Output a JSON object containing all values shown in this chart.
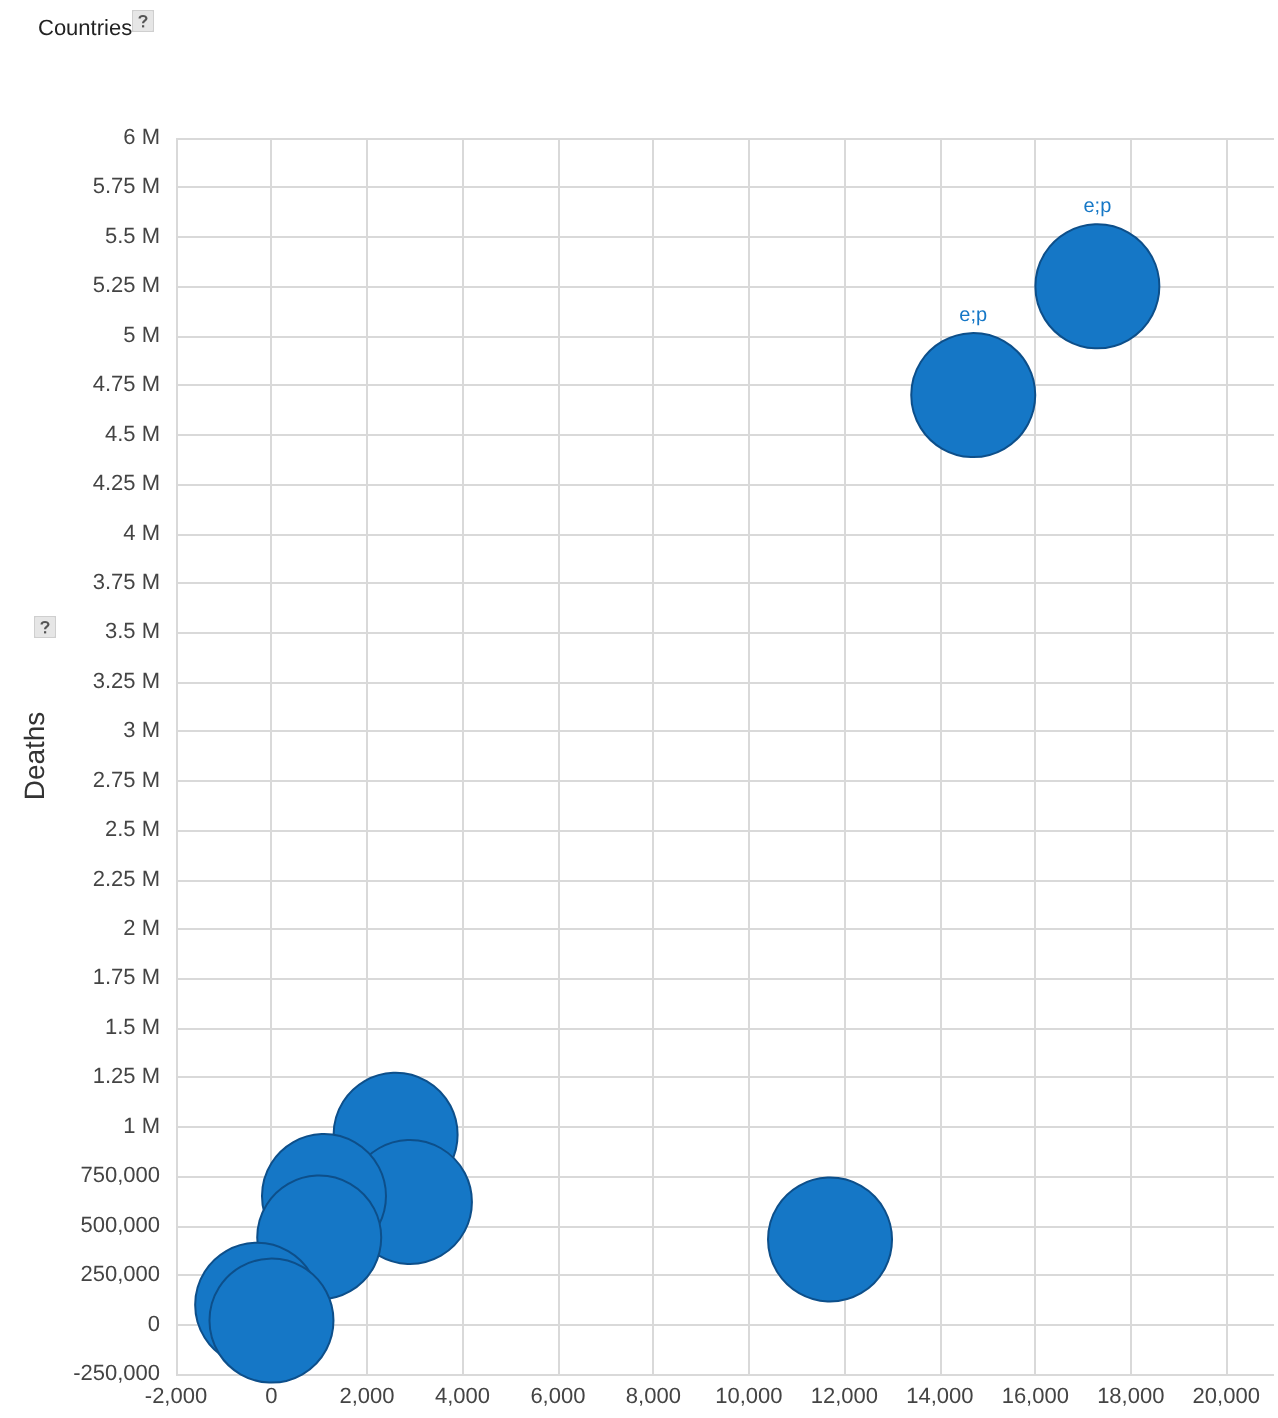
{
  "chart_data": {
    "type": "bubble",
    "title": "Countries",
    "ylabel": "Deaths",
    "color": "#1577c6",
    "x": [
      17300,
      14700,
      11700,
      2600,
      2900,
      1100,
      1000,
      -300,
      0
    ],
    "values": [
      5250000,
      4700000,
      430000,
      960000,
      620000,
      650000,
      440000,
      100000,
      20000
    ],
    "sizes": [
      1,
      1,
      1,
      1,
      1,
      1,
      1,
      1,
      1
    ],
    "value_labels": [
      "e;p",
      "e;p",
      null,
      null,
      null,
      null,
      null,
      null,
      null
    ],
    "xlim": [
      -2000,
      21000
    ],
    "xticks": [
      {
        "value": -2000,
        "label": "-2,000"
      },
      0,
      {
        "value": 2000,
        "label": "2,000"
      },
      {
        "value": 4000,
        "label": "4,000"
      },
      {
        "value": 6000,
        "label": "6,000"
      },
      {
        "value": 8000,
        "label": "8,000"
      },
      {
        "value": 10000,
        "label": "10,000"
      },
      {
        "value": 12000,
        "label": "12,000"
      },
      {
        "value": 14000,
        "label": "14,000"
      },
      {
        "value": 16000,
        "label": "16,000"
      },
      {
        "value": 18000,
        "label": "18,000"
      },
      {
        "value": 20000,
        "label": "20,000"
      }
    ],
    "ylim": [
      -250000,
      6000000
    ],
    "yticks": [
      {
        "value": -250000,
        "label": "-250,000"
      },
      0,
      {
        "value": 250000,
        "label": "250,000"
      },
      {
        "value": 500000,
        "label": "500,000"
      },
      {
        "value": 750000,
        "label": "750,000"
      },
      {
        "value": 1000000,
        "label": "1 M"
      },
      {
        "value": 1250000,
        "label": "1.25 M"
      },
      {
        "value": 1500000,
        "label": "1.5 M"
      },
      {
        "value": 1750000,
        "label": "1.75 M"
      },
      {
        "value": 2000000,
        "label": "2 M"
      },
      {
        "value": 2250000,
        "label": "2.25 M"
      },
      {
        "value": 2500000,
        "label": "2.5 M"
      },
      {
        "value": 2750000,
        "label": "2.75 M"
      },
      {
        "value": 3000000,
        "label": "3 M"
      },
      {
        "value": 3250000,
        "label": "3.25 M"
      },
      {
        "value": 3500000,
        "label": "3.5 M"
      },
      {
        "value": 3750000,
        "label": "3.75 M"
      },
      {
        "value": 4000000,
        "label": "4 M"
      },
      {
        "value": 4250000,
        "label": "4.25 M"
      },
      {
        "value": 4500000,
        "label": "4.5 M"
      },
      {
        "value": 4750000,
        "label": "4.75 M"
      },
      {
        "value": 5000000,
        "label": "5 M"
      },
      {
        "value": 5250000,
        "label": "5.25 M"
      },
      {
        "value": 5500000,
        "label": "5.5 M"
      },
      {
        "value": 5750000,
        "label": "5.75 M"
      },
      {
        "value": 6000000,
        "label": "6 M"
      }
    ],
    "grid": true
  }
}
